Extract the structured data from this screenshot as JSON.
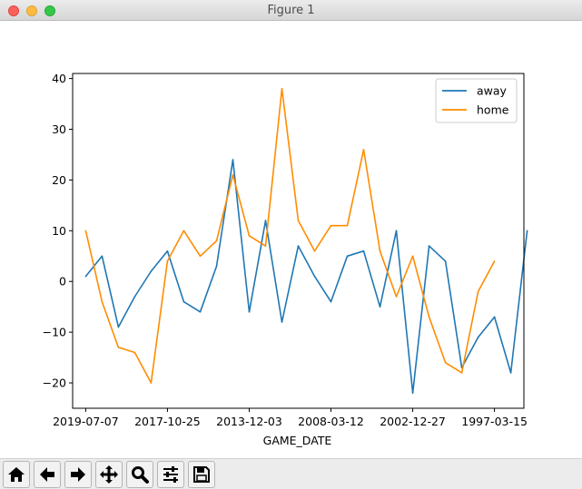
{
  "window": {
    "title": "Figure 1"
  },
  "toolbar": {
    "buttons": [
      {
        "name": "home-button",
        "icon": "home-icon"
      },
      {
        "name": "back-button",
        "icon": "arrow-left-icon"
      },
      {
        "name": "forward-button",
        "icon": "arrow-right-icon"
      },
      {
        "name": "pan-button",
        "icon": "move-icon"
      },
      {
        "name": "zoom-button",
        "icon": "magnifier-icon"
      },
      {
        "name": "configure-subplots-button",
        "icon": "sliders-icon"
      },
      {
        "name": "save-button",
        "icon": "floppy-disk-icon"
      }
    ]
  },
  "colors": {
    "away": "#1f77b4",
    "home": "#ff8c00"
  },
  "chart_data": {
    "type": "line",
    "xlabel": "GAME_DATE",
    "ylabel": "",
    "ylim": [
      -25,
      41
    ],
    "xlim": [
      -0.8,
      26.8
    ],
    "yticks": [
      -20,
      -10,
      0,
      10,
      20,
      30,
      40
    ],
    "yticklabels": [
      "−20",
      "−10",
      "0",
      "10",
      "20",
      "30",
      "40"
    ],
    "xticks": [
      0,
      5,
      10,
      15,
      20,
      25
    ],
    "xticklabels": [
      "2019-07-07",
      "2017-10-25",
      "2013-12-03",
      "2008-03-12",
      "2002-12-27",
      "1997-03-15"
    ],
    "legend_position": "top-right",
    "series": [
      {
        "name": "away",
        "color": "#1f77b4",
        "x": [
          0,
          1,
          2,
          3,
          4,
          5,
          6,
          7,
          8,
          9,
          10,
          11,
          12,
          13,
          14,
          15,
          16,
          17,
          18,
          19,
          20,
          21,
          22,
          23,
          24,
          25,
          26,
          27
        ],
        "values": [
          1,
          5,
          -9,
          -3,
          2,
          6,
          -4,
          -6,
          3,
          24,
          -6,
          12,
          -8,
          7,
          1,
          -4,
          5,
          6,
          -5,
          10,
          -22,
          7,
          4,
          -17,
          -11,
          -7,
          -18,
          10
        ]
      },
      {
        "name": "home",
        "color": "#ff8c00",
        "x": [
          0,
          1,
          2,
          3,
          4,
          5,
          6,
          7,
          8,
          9,
          10,
          11,
          12,
          13,
          14,
          15,
          16,
          17,
          18,
          19,
          20,
          21,
          22,
          23,
          24,
          25
        ],
        "values": [
          10,
          -4,
          -13,
          -14,
          -20,
          4,
          10,
          5,
          8,
          21,
          9,
          7,
          38,
          12,
          6,
          11,
          11,
          26,
          6,
          -3,
          5,
          -7,
          -16,
          -18,
          -2,
          4
        ]
      }
    ]
  }
}
